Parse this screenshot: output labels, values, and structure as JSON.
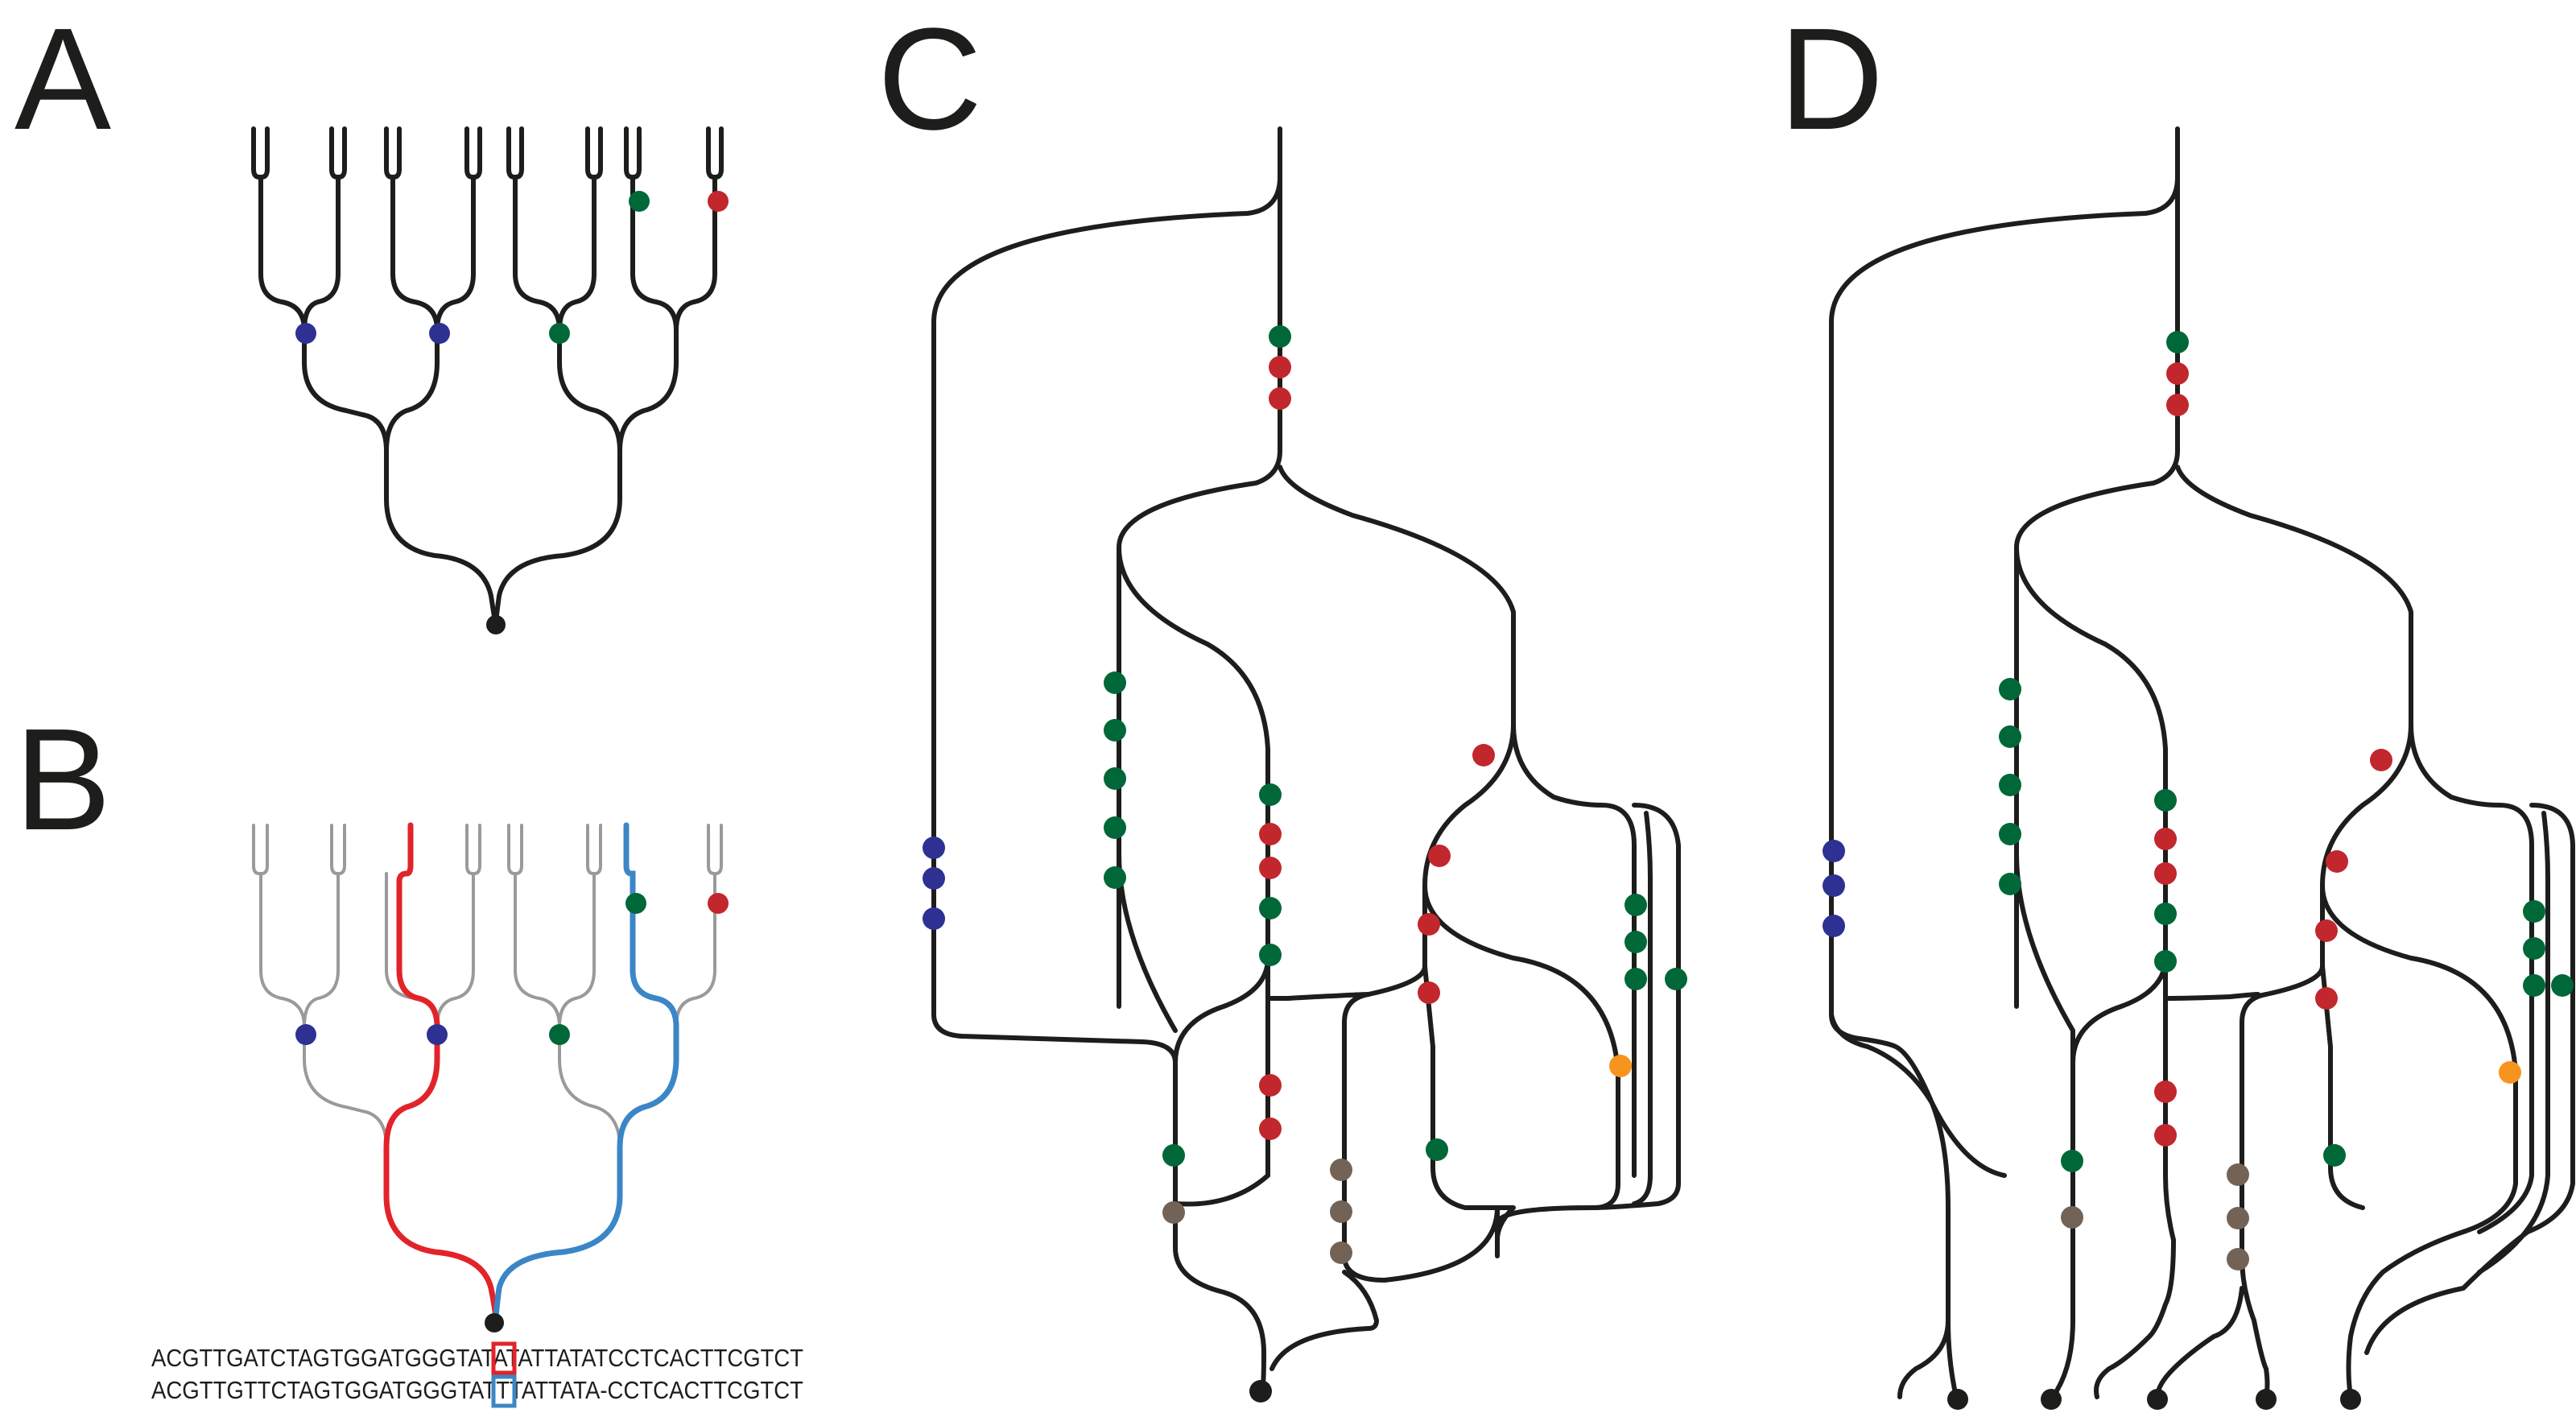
{
  "panels": {
    "a": {
      "label": "A"
    },
    "b": {
      "label": "B"
    },
    "c": {
      "label": "C"
    },
    "d": {
      "label": "D"
    }
  },
  "sequences": {
    "line1": {
      "before": "ACGTTGATCTAGTGGATGGGTAT",
      "highlight": "A",
      "after": "TATTATATCCTCACTTCGTCT"
    },
    "line2": {
      "before": "ACGTTGTTCTAGTGGATGGGTAT",
      "highlight": "T",
      "after": "TATTATA-CCTCACTTCGTCT"
    }
  },
  "colors": {
    "line": "#1d1d1b",
    "grey_branch": "#9a9a9a",
    "red_lineage": "#e2232a",
    "blue_lineage": "#3b86c6",
    "mut_blue": "#2e3192",
    "mut_green": "#006838",
    "mut_red": "#c1272d",
    "mut_orange": "#f7941d",
    "mut_brown": "#736357",
    "root": "#1d1d1b"
  }
}
